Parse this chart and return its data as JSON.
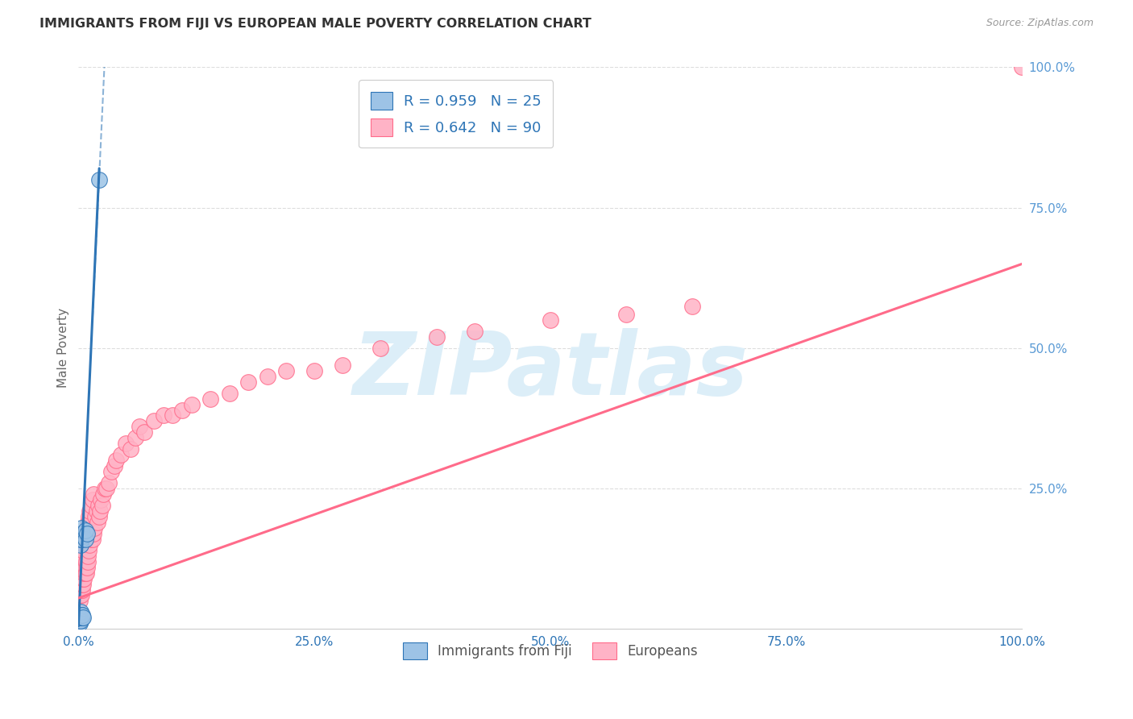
{
  "title": "IMMIGRANTS FROM FIJI VS EUROPEAN MALE POVERTY CORRELATION CHART",
  "source": "Source: ZipAtlas.com",
  "xlabel": "",
  "ylabel": "Male Poverty",
  "xlim": [
    0.0,
    1.0
  ],
  "ylim": [
    0.0,
    1.0
  ],
  "xtick_labels": [
    "0.0%",
    "25.0%",
    "50.0%",
    "75.0%",
    "100.0%"
  ],
  "xtick_positions": [
    0.0,
    0.25,
    0.5,
    0.75,
    1.0
  ],
  "right_ytick_labels": [
    "25.0%",
    "50.0%",
    "75.0%",
    "100.0%"
  ],
  "right_ytick_positions": [
    0.25,
    0.5,
    0.75,
    1.0
  ],
  "right_ytick_color": "#5B9BD5",
  "fiji_color": "#9DC3E6",
  "fiji_edge_color": "#2E75B6",
  "european_color": "#FFB3C6",
  "european_edge_color": "#FF6B8A",
  "fiji_R": "0.959",
  "fiji_N": "25",
  "european_R": "0.642",
  "european_N": "90",
  "legend_R_color": "#2E75B6",
  "watermark_text": "ZIPatlas",
  "watermark_color": "#DCEEF8",
  "background_color": "#FFFFFF",
  "grid_color": "#DDDDDD",
  "fiji_points_x": [
    0.001,
    0.001,
    0.001,
    0.001,
    0.002,
    0.002,
    0.002,
    0.002,
    0.002,
    0.002,
    0.002,
    0.003,
    0.003,
    0.003,
    0.003,
    0.003,
    0.004,
    0.004,
    0.004,
    0.005,
    0.005,
    0.007,
    0.007,
    0.009,
    0.022
  ],
  "fiji_points_y": [
    0.01,
    0.015,
    0.02,
    0.025,
    0.015,
    0.02,
    0.025,
    0.03,
    0.15,
    0.16,
    0.17,
    0.02,
    0.025,
    0.16,
    0.17,
    0.18,
    0.02,
    0.025,
    0.17,
    0.02,
    0.165,
    0.16,
    0.175,
    0.17,
    0.8
  ],
  "european_points_x": [
    0.001,
    0.001,
    0.001,
    0.001,
    0.001,
    0.002,
    0.002,
    0.002,
    0.002,
    0.002,
    0.003,
    0.003,
    0.003,
    0.003,
    0.003,
    0.003,
    0.004,
    0.004,
    0.004,
    0.004,
    0.005,
    0.005,
    0.005,
    0.005,
    0.006,
    0.006,
    0.006,
    0.007,
    0.007,
    0.007,
    0.008,
    0.008,
    0.008,
    0.009,
    0.009,
    0.01,
    0.01,
    0.01,
    0.011,
    0.011,
    0.012,
    0.012,
    0.013,
    0.013,
    0.014,
    0.015,
    0.015,
    0.016,
    0.016,
    0.017,
    0.018,
    0.019,
    0.02,
    0.021,
    0.022,
    0.023,
    0.024,
    0.025,
    0.026,
    0.028,
    0.03,
    0.032,
    0.035,
    0.038,
    0.04,
    0.045,
    0.05,
    0.055,
    0.06,
    0.065,
    0.07,
    0.08,
    0.09,
    0.1,
    0.11,
    0.12,
    0.14,
    0.16,
    0.18,
    0.2,
    0.22,
    0.25,
    0.28,
    0.32,
    0.38,
    0.42,
    0.5,
    0.58,
    0.65,
    1.0
  ],
  "european_points_y": [
    0.05,
    0.06,
    0.07,
    0.08,
    0.09,
    0.06,
    0.07,
    0.08,
    0.09,
    0.1,
    0.06,
    0.07,
    0.08,
    0.09,
    0.1,
    0.12,
    0.07,
    0.08,
    0.09,
    0.13,
    0.08,
    0.09,
    0.1,
    0.14,
    0.09,
    0.1,
    0.15,
    0.1,
    0.11,
    0.16,
    0.1,
    0.12,
    0.17,
    0.11,
    0.18,
    0.12,
    0.13,
    0.19,
    0.14,
    0.2,
    0.15,
    0.21,
    0.16,
    0.22,
    0.17,
    0.16,
    0.23,
    0.17,
    0.24,
    0.18,
    0.2,
    0.21,
    0.19,
    0.22,
    0.2,
    0.21,
    0.23,
    0.22,
    0.24,
    0.25,
    0.25,
    0.26,
    0.28,
    0.29,
    0.3,
    0.31,
    0.33,
    0.32,
    0.34,
    0.36,
    0.35,
    0.37,
    0.38,
    0.38,
    0.39,
    0.4,
    0.41,
    0.42,
    0.44,
    0.45,
    0.46,
    0.46,
    0.47,
    0.5,
    0.52,
    0.53,
    0.55,
    0.56,
    0.575,
    1.0
  ],
  "fiji_trendline_x0": 0.0,
  "fiji_trendline_y0": 0.005,
  "fiji_trendline_x1": 0.022,
  "fiji_trendline_y1": 0.82,
  "fiji_trendline_dash_x0": 0.015,
  "fiji_trendline_dash_y0": 0.555,
  "fiji_trendline_dash_x1": 0.028,
  "fiji_trendline_dash_y1": 1.02,
  "european_trendline_x0": 0.0,
  "european_trendline_y0": 0.055,
  "european_trendline_x1": 1.0,
  "european_trendline_y1": 0.65
}
